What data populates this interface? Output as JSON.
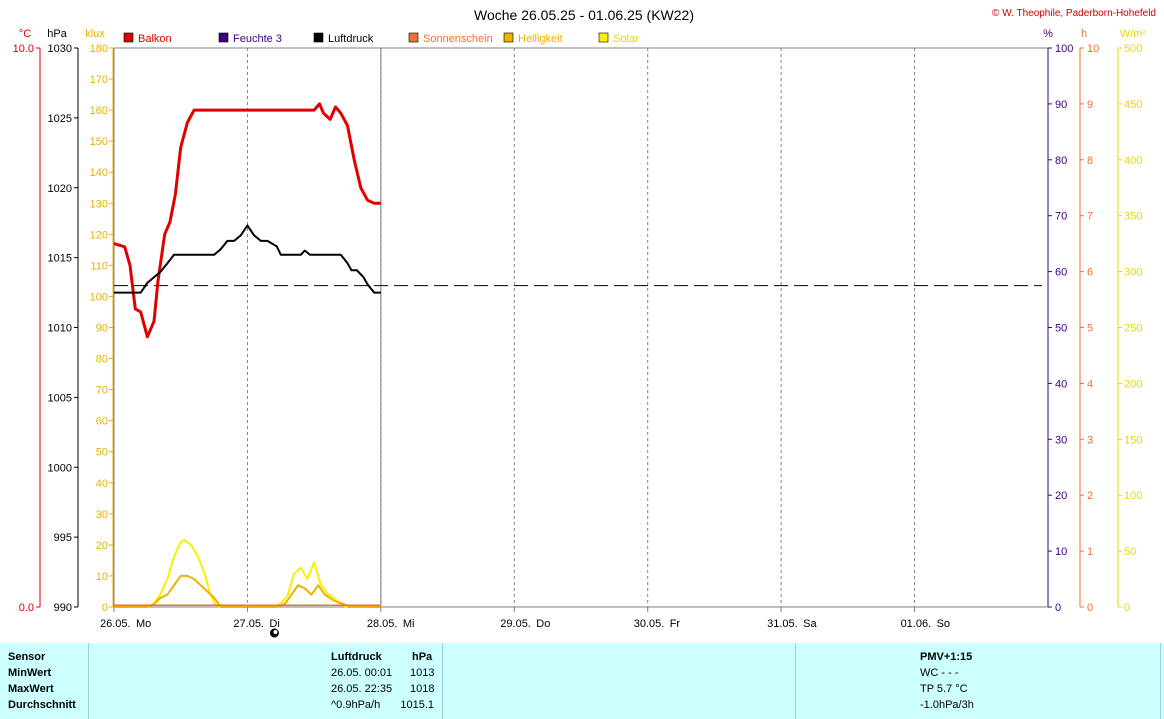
{
  "title": "Woche 26.05.25 - 01.06.25 (KW22)",
  "copyright": "© W. Theophile, Paderborn-Hohefeld",
  "unit_labels": {
    "celsius": "°C",
    "hpa": "hPa",
    "klux": "klux",
    "percent": "%",
    "hours": "h",
    "wm2": "W/m²"
  },
  "legend": [
    {
      "name": "Balkon",
      "color": "#e00000",
      "text_color": "#e00000"
    },
    {
      "name": "Feuchte 3",
      "color": "#3b0080",
      "text_color": "#3b0080"
    },
    {
      "name": "Luftdruck",
      "color": "#000000",
      "text_color": "#000000"
    },
    {
      "name": "Sonnenschein",
      "color": "#f07030",
      "text_color": "#f07030"
    },
    {
      "name": "Helligkeit",
      "color": "#f0b000",
      "text_color": "#f0b000"
    },
    {
      "name": "Solar",
      "color": "#f8f000",
      "text_color": "#e8d800"
    }
  ],
  "chart_data": {
    "type": "line",
    "title": "Woche 26.05.25 - 01.06.25 (KW22)",
    "x_range_days": [
      0,
      7
    ],
    "x_ticks": [
      {
        "day": 0,
        "label": "26.05.",
        "weekday": "Mo"
      },
      {
        "day": 1,
        "label": "27.05.",
        "weekday": "Di"
      },
      {
        "day": 2,
        "label": "28.05.",
        "weekday": "Mi"
      },
      {
        "day": 3,
        "label": "29.05.",
        "weekday": "Do"
      },
      {
        "day": 4,
        "label": "30.05.",
        "weekday": "Fr"
      },
      {
        "day": 5,
        "label": "31.05.",
        "weekday": "Sa"
      },
      {
        "day": 6,
        "label": "01.06.",
        "weekday": "So"
      }
    ],
    "axes": {
      "celsius": {
        "range": [
          0,
          10
        ],
        "ticks": [
          {
            "v": 0,
            "label": "0.0"
          },
          {
            "v": 10,
            "label": "10.0"
          }
        ],
        "color": "#e00000"
      },
      "hpa": {
        "range": [
          990,
          1030
        ],
        "ticks": [
          990,
          995,
          1000,
          1005,
          1010,
          1015,
          1020,
          1025,
          1030
        ]
      },
      "klux": {
        "range": [
          0,
          180
        ],
        "ticks": [
          0,
          10,
          20,
          30,
          40,
          50,
          60,
          70,
          80,
          90,
          100,
          110,
          120,
          130,
          140,
          150,
          160,
          170,
          180
        ]
      },
      "percent": {
        "range": [
          0,
          100
        ],
        "ticks": [
          0,
          10,
          20,
          30,
          40,
          50,
          60,
          70,
          80,
          90,
          100
        ]
      },
      "hours": {
        "range": [
          0,
          10
        ],
        "ticks": [
          0,
          1,
          2,
          3,
          4,
          5,
          6,
          7,
          8,
          9,
          10
        ]
      },
      "wm2": {
        "range": [
          0,
          500
        ],
        "ticks": [
          0,
          50,
          100,
          150,
          200,
          250,
          300,
          350,
          400,
          450,
          500
        ]
      }
    },
    "reference_lines": [
      {
        "axis": "hpa",
        "value": 1013,
        "style": "dashed",
        "color": "#000000"
      },
      {
        "axis": "celsius",
        "value": 10,
        "style": "dotted",
        "color": "#808080"
      }
    ],
    "series": [
      {
        "name": "Balkon",
        "axis": "klux",
        "color": "#e00000",
        "points": [
          [
            0,
            117
          ],
          [
            0.08,
            116
          ],
          [
            0.12,
            110
          ],
          [
            0.16,
            96
          ],
          [
            0.2,
            95
          ],
          [
            0.25,
            87
          ],
          [
            0.3,
            92
          ],
          [
            0.33,
            105
          ],
          [
            0.38,
            120
          ],
          [
            0.42,
            124
          ],
          [
            0.46,
            133
          ],
          [
            0.5,
            148
          ],
          [
            0.55,
            156
          ],
          [
            0.6,
            160
          ],
          [
            1.0,
            160
          ],
          [
            1.5,
            160
          ],
          [
            1.54,
            162
          ],
          [
            1.57,
            159
          ],
          [
            1.62,
            157
          ],
          [
            1.66,
            161
          ],
          [
            1.7,
            159
          ],
          [
            1.75,
            155
          ],
          [
            1.8,
            144
          ],
          [
            1.85,
            135
          ],
          [
            1.9,
            131
          ],
          [
            1.95,
            130
          ],
          [
            2.0,
            130
          ]
        ]
      },
      {
        "name": "Luftdruck",
        "axis": "hpa",
        "color": "#000000",
        "points": [
          [
            0,
            1012.5
          ],
          [
            0.1,
            1012.5
          ],
          [
            0.2,
            1012.5
          ],
          [
            0.25,
            1013.2
          ],
          [
            0.3,
            1013.6
          ],
          [
            0.35,
            1014
          ],
          [
            0.4,
            1014.6
          ],
          [
            0.45,
            1015.2
          ],
          [
            0.5,
            1015.2
          ],
          [
            0.75,
            1015.2
          ],
          [
            0.8,
            1015.6
          ],
          [
            0.85,
            1016.2
          ],
          [
            0.9,
            1016.2
          ],
          [
            0.95,
            1016.6
          ],
          [
            1.0,
            1017.3
          ],
          [
            1.05,
            1016.6
          ],
          [
            1.1,
            1016.2
          ],
          [
            1.15,
            1016.2
          ],
          [
            1.22,
            1015.8
          ],
          [
            1.25,
            1015.2
          ],
          [
            1.35,
            1015.2
          ],
          [
            1.4,
            1015.2
          ],
          [
            1.43,
            1015.5
          ],
          [
            1.47,
            1015.2
          ],
          [
            1.7,
            1015.2
          ],
          [
            1.75,
            1014.6
          ],
          [
            1.78,
            1014.1
          ],
          [
            1.82,
            1014.1
          ],
          [
            1.87,
            1013.6
          ],
          [
            1.9,
            1013.1
          ],
          [
            1.95,
            1012.5
          ],
          [
            2.0,
            1012.5
          ]
        ]
      },
      {
        "name": "Solar",
        "axis": "wm2",
        "color": "#f8f000",
        "points": [
          [
            0,
            0
          ],
          [
            0.25,
            0
          ],
          [
            0.3,
            3
          ],
          [
            0.35,
            12
          ],
          [
            0.4,
            25
          ],
          [
            0.45,
            45
          ],
          [
            0.5,
            58
          ],
          [
            0.53,
            60
          ],
          [
            0.58,
            55
          ],
          [
            0.63,
            45
          ],
          [
            0.68,
            30
          ],
          [
            0.72,
            12
          ],
          [
            0.76,
            2
          ],
          [
            0.8,
            0
          ],
          [
            1.0,
            0
          ],
          [
            1.2,
            0
          ],
          [
            1.25,
            3
          ],
          [
            1.3,
            10
          ],
          [
            1.35,
            30
          ],
          [
            1.4,
            35
          ],
          [
            1.45,
            25
          ],
          [
            1.5,
            40
          ],
          [
            1.55,
            20
          ],
          [
            1.6,
            12
          ],
          [
            1.65,
            8
          ],
          [
            1.7,
            2
          ],
          [
            1.75,
            0
          ],
          [
            2.0,
            0
          ]
        ]
      },
      {
        "name": "Helligkeit",
        "axis": "klux",
        "color": "#f0b000",
        "points": [
          [
            0,
            0
          ],
          [
            0.25,
            0
          ],
          [
            0.3,
            1
          ],
          [
            0.35,
            3
          ],
          [
            0.4,
            4
          ],
          [
            0.45,
            7
          ],
          [
            0.5,
            10
          ],
          [
            0.55,
            10
          ],
          [
            0.6,
            9
          ],
          [
            0.65,
            7
          ],
          [
            0.7,
            5
          ],
          [
            0.75,
            3
          ],
          [
            0.8,
            0
          ],
          [
            1.0,
            0
          ],
          [
            1.22,
            0
          ],
          [
            1.28,
            1
          ],
          [
            1.33,
            4
          ],
          [
            1.38,
            7
          ],
          [
            1.43,
            6
          ],
          [
            1.48,
            4
          ],
          [
            1.53,
            7
          ],
          [
            1.58,
            4
          ],
          [
            1.65,
            2
          ],
          [
            1.72,
            1
          ],
          [
            1.76,
            0
          ],
          [
            2.0,
            0
          ]
        ]
      },
      {
        "name": "Sonnenschein",
        "axis": "hours",
        "color": "#f07030",
        "points": [
          [
            0,
            0.03
          ],
          [
            2.0,
            0.03
          ]
        ]
      }
    ]
  },
  "sun_marker_day": 1.0,
  "stats_table": {
    "header": {
      "sensor": "Sensor",
      "name": "Luftdruck",
      "unit": "hPa",
      "pmv": "PMV+1:15"
    },
    "rows": [
      {
        "label": "MinWert",
        "time": "26.05.  00:01",
        "value": "1013",
        "right": "WC - - -"
      },
      {
        "label": "MaxWert",
        "time": "26.05.  22:35",
        "value": "1018",
        "right": "TP 5.7 °C"
      },
      {
        "label": "Durchschnitt",
        "time": "^0.9hPa/h",
        "value": "1015.1",
        "right": "-1.0hPa/3h"
      }
    ]
  }
}
